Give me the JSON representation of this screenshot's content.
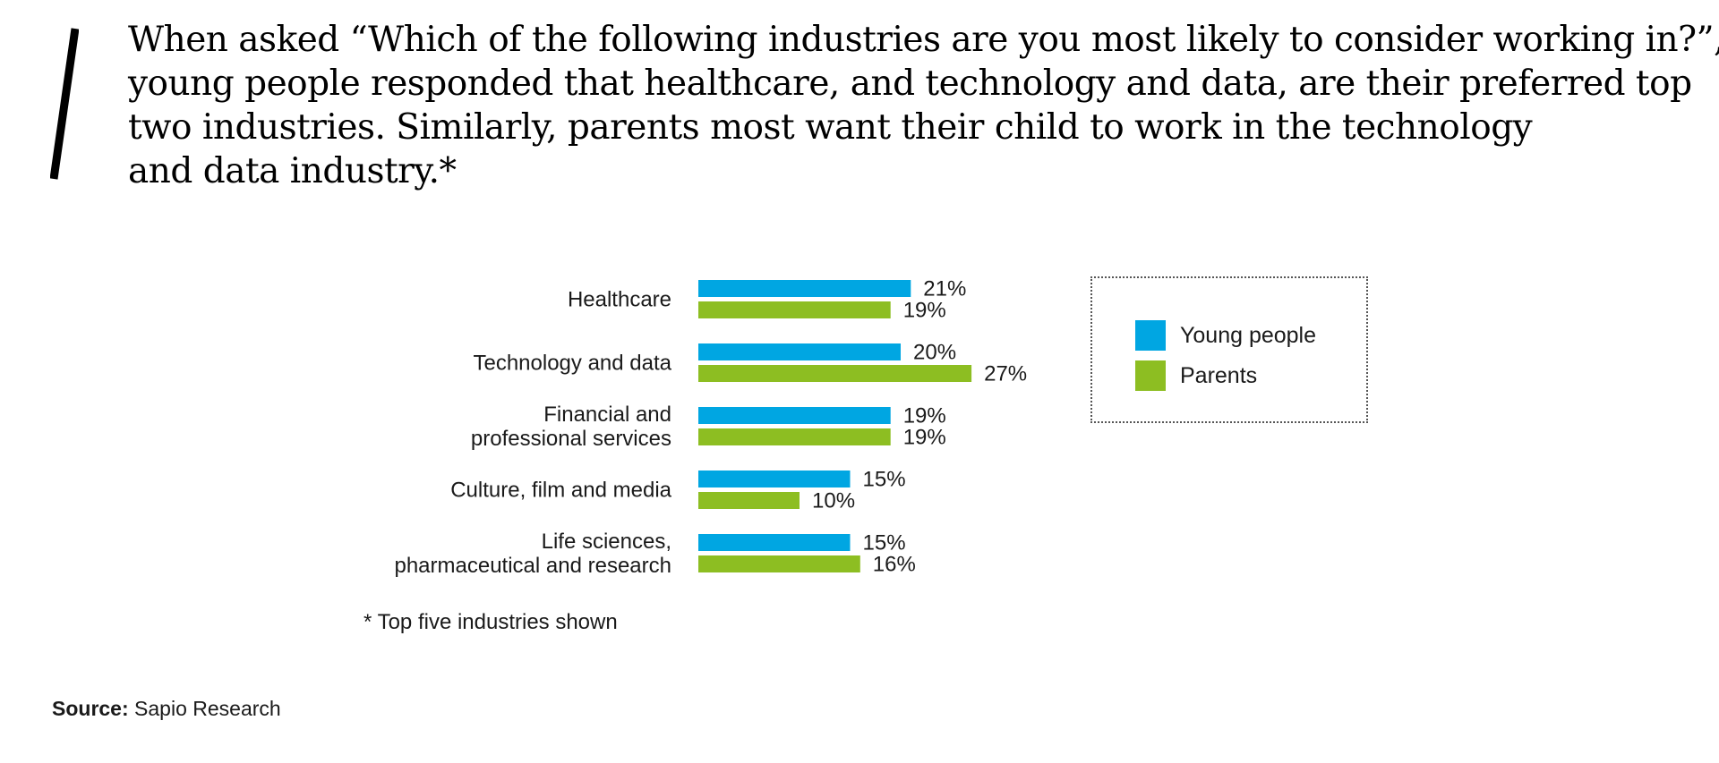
{
  "headline": {
    "lines": [
      "When asked “Which of the following industries are you most likely to consider working in?”,",
      "young people responded that healthcare, and technology and data, are their preferred top",
      "two industries. Similarly, parents most want their child to work in the technology",
      "and data industry.*"
    ]
  },
  "colors": {
    "young": "#00A6E2",
    "parents": "#8DBE22",
    "slash": "#000000"
  },
  "chart_data": {
    "type": "bar",
    "orientation": "horizontal",
    "categories": [
      [
        "Healthcare"
      ],
      [
        "Technology and data"
      ],
      [
        "Financial and",
        "professional services"
      ],
      [
        "Culture, film and media"
      ],
      [
        "Life sciences,",
        "pharmaceutical and research"
      ]
    ],
    "series": [
      {
        "name": "Young people",
        "values": [
          21,
          20,
          19,
          15,
          15
        ],
        "labels": [
          "21%",
          "20%",
          "19%",
          "15%",
          "15%"
        ]
      },
      {
        "name": "Parents",
        "values": [
          19,
          27,
          19,
          10,
          16
        ],
        "labels": [
          "19%",
          "27%",
          "19%",
          "10%",
          "16%"
        ]
      }
    ],
    "unit": "%",
    "legend_position": "right",
    "grid": false
  },
  "legend": {
    "young": "Young people",
    "parents": "Parents"
  },
  "footnote": "* Top five industries shown",
  "source": {
    "label": "Source:",
    "text": "Sapio Research"
  }
}
